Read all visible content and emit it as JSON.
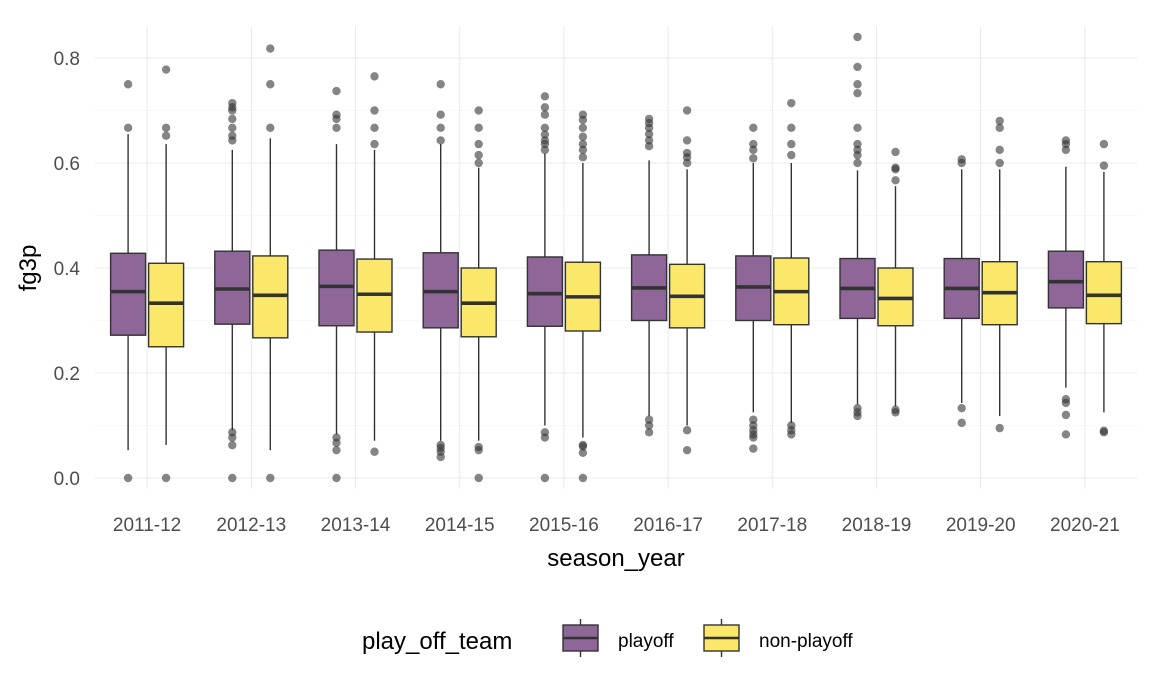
{
  "chart_data": {
    "type": "boxplot",
    "xlabel": "season_year",
    "ylabel": "fg3p",
    "ylim": [
      -0.02,
      0.86
    ],
    "yticks": [
      "0.0",
      "0.2",
      "0.4",
      "0.6",
      "0.8"
    ],
    "ytick_values": [
      0.0,
      0.2,
      0.4,
      0.6,
      0.8
    ],
    "categories": [
      "2011-12",
      "2012-13",
      "2013-14",
      "2014-15",
      "2015-16",
      "2016-17",
      "2017-18",
      "2018-19",
      "2019-20",
      "2020-21"
    ],
    "grid": true,
    "legend": {
      "title": "play_off_team",
      "position": "bottom",
      "entries": [
        "playoff",
        "non-playoff"
      ]
    },
    "series": [
      {
        "name": "playoff",
        "color": "#8e6698",
        "boxes": [
          {
            "q1": 0.272,
            "median": 0.355,
            "q3": 0.428,
            "whisker_low": 0.053,
            "whisker_high": 0.655,
            "outliers": [
              0.0,
              0.667,
              0.75
            ]
          },
          {
            "q1": 0.293,
            "median": 0.36,
            "q3": 0.432,
            "whisker_low": 0.091,
            "whisker_high": 0.625,
            "outliers": [
              0.0,
              0.0625,
              0.077,
              0.087,
              0.643,
              0.652,
              0.667,
              0.684,
              0.7,
              0.706,
              0.714
            ]
          },
          {
            "q1": 0.29,
            "median": 0.365,
            "q3": 0.434,
            "whisker_low": 0.083,
            "whisker_high": 0.636,
            "outliers": [
              0.0,
              0.053,
              0.067,
              0.077,
              0.667,
              0.684,
              0.692,
              0.737
            ]
          },
          {
            "q1": 0.286,
            "median": 0.355,
            "q3": 0.429,
            "whisker_low": 0.071,
            "whisker_high": 0.636,
            "outliers": [
              0.04,
              0.05,
              0.057,
              0.063,
              0.643,
              0.667,
              0.692,
              0.75
            ]
          },
          {
            "q1": 0.289,
            "median": 0.351,
            "q3": 0.421,
            "whisker_low": 0.1,
            "whisker_high": 0.618,
            "outliers": [
              0.0,
              0.077,
              0.087,
              0.625,
              0.636,
              0.643,
              0.654,
              0.667,
              0.692,
              0.706,
              0.727
            ]
          },
          {
            "q1": 0.3,
            "median": 0.362,
            "q3": 0.425,
            "whisker_low": 0.118,
            "whisker_high": 0.605,
            "outliers": [
              0.087,
              0.1,
              0.111,
              0.632,
              0.643,
              0.655,
              0.667,
              0.676,
              0.684
            ]
          },
          {
            "q1": 0.3,
            "median": 0.364,
            "q3": 0.423,
            "whisker_low": 0.125,
            "whisker_high": 0.6,
            "outliers": [
              0.056,
              0.077,
              0.083,
              0.091,
              0.1,
              0.111,
              0.609,
              0.625,
              0.636,
              0.667
            ]
          },
          {
            "q1": 0.304,
            "median": 0.361,
            "q3": 0.418,
            "whisker_low": 0.14,
            "whisker_high": 0.586,
            "outliers": [
              0.118,
              0.125,
              0.133,
              0.6,
              0.615,
              0.625,
              0.636,
              0.667,
              0.733,
              0.75,
              0.783,
              0.84
            ]
          },
          {
            "q1": 0.304,
            "median": 0.361,
            "q3": 0.418,
            "whisker_low": 0.143,
            "whisker_high": 0.588,
            "outliers": [
              0.105,
              0.133,
              0.6,
              0.607
            ]
          },
          {
            "q1": 0.324,
            "median": 0.374,
            "q3": 0.432,
            "whisker_low": 0.172,
            "whisker_high": 0.593,
            "outliers": [
              0.083,
              0.12,
              0.143,
              0.15,
              0.625,
              0.636,
              0.643
            ]
          }
        ]
      },
      {
        "name": "non-playoff",
        "color": "#fbe86a",
        "boxes": [
          {
            "q1": 0.25,
            "median": 0.333,
            "q3": 0.409,
            "whisker_low": 0.063,
            "whisker_high": 0.636,
            "outliers": [
              0.0,
              0.652,
              0.667,
              0.778
            ]
          },
          {
            "q1": 0.267,
            "median": 0.348,
            "q3": 0.423,
            "whisker_low": 0.053,
            "whisker_high": 0.647,
            "outliers": [
              0.0,
              0.667,
              0.75,
              0.818
            ]
          },
          {
            "q1": 0.278,
            "median": 0.35,
            "q3": 0.417,
            "whisker_low": 0.071,
            "whisker_high": 0.625,
            "outliers": [
              0.05,
              0.636,
              0.667,
              0.7,
              0.765
            ]
          },
          {
            "q1": 0.269,
            "median": 0.333,
            "q3": 0.4,
            "whisker_low": 0.071,
            "whisker_high": 0.591,
            "outliers": [
              0.0,
              0.053,
              0.059,
              0.6,
              0.615,
              0.636,
              0.667,
              0.7
            ]
          },
          {
            "q1": 0.28,
            "median": 0.345,
            "q3": 0.411,
            "whisker_low": 0.077,
            "whisker_high": 0.6,
            "outliers": [
              0.0,
              0.048,
              0.06,
              0.063,
              0.611,
              0.625,
              0.636,
              0.65,
              0.667,
              0.682,
              0.692
            ]
          },
          {
            "q1": 0.286,
            "median": 0.346,
            "q3": 0.407,
            "whisker_low": 0.1,
            "whisker_high": 0.588,
            "outliers": [
              0.053,
              0.091,
              0.6,
              0.611,
              0.619,
              0.643,
              0.7
            ]
          },
          {
            "q1": 0.292,
            "median": 0.355,
            "q3": 0.419,
            "whisker_low": 0.105,
            "whisker_high": 0.6,
            "outliers": [
              0.083,
              0.091,
              0.1,
              0.615,
              0.636,
              0.667,
              0.714
            ]
          },
          {
            "q1": 0.29,
            "median": 0.342,
            "q3": 0.4,
            "whisker_low": 0.136,
            "whisker_high": 0.556,
            "outliers": [
              0.125,
              0.13,
              0.567,
              0.588,
              0.591,
              0.621
            ]
          },
          {
            "q1": 0.292,
            "median": 0.353,
            "q3": 0.412,
            "whisker_low": 0.118,
            "whisker_high": 0.588,
            "outliers": [
              0.095,
              0.6,
              0.625,
              0.667,
              0.68
            ]
          },
          {
            "q1": 0.294,
            "median": 0.348,
            "q3": 0.412,
            "whisker_low": 0.125,
            "whisker_high": 0.583,
            "outliers": [
              0.087,
              0.09,
              0.595,
              0.636
            ]
          }
        ]
      }
    ]
  }
}
